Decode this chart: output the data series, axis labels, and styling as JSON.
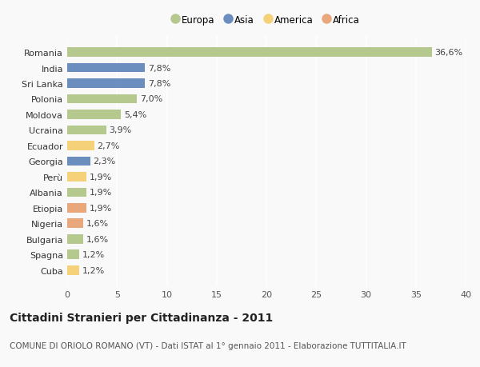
{
  "countries": [
    "Romania",
    "India",
    "Sri Lanka",
    "Polonia",
    "Moldova",
    "Ucraina",
    "Ecuador",
    "Georgia",
    "Perù",
    "Albania",
    "Etiopia",
    "Nigeria",
    "Bulgaria",
    "Spagna",
    "Cuba"
  ],
  "values": [
    36.6,
    7.8,
    7.8,
    7.0,
    5.4,
    3.9,
    2.7,
    2.3,
    1.9,
    1.9,
    1.9,
    1.6,
    1.6,
    1.2,
    1.2
  ],
  "colors": [
    "#b5c98e",
    "#6b8ebf",
    "#6b8ebf",
    "#b5c98e",
    "#b5c98e",
    "#b5c98e",
    "#f5d27a",
    "#6b8ebf",
    "#f5d27a",
    "#b5c98e",
    "#e8a87c",
    "#e8a87c",
    "#b5c98e",
    "#b5c98e",
    "#f5d27a"
  ],
  "labels": [
    "36,6%",
    "7,8%",
    "7,8%",
    "7,0%",
    "5,4%",
    "3,9%",
    "2,7%",
    "2,3%",
    "1,9%",
    "1,9%",
    "1,9%",
    "1,6%",
    "1,6%",
    "1,2%",
    "1,2%"
  ],
  "legend": [
    {
      "label": "Europa",
      "color": "#b5c98e"
    },
    {
      "label": "Asia",
      "color": "#6b8ebf"
    },
    {
      "label": "America",
      "color": "#f5d27a"
    },
    {
      "label": "Africa",
      "color": "#e8a87c"
    }
  ],
  "xlim": [
    0,
    40
  ],
  "xticks": [
    0,
    5,
    10,
    15,
    20,
    25,
    30,
    35,
    40
  ],
  "title": "Cittadini Stranieri per Cittadinanza - 2011",
  "subtitle": "COMUNE DI ORIOLO ROMANO (VT) - Dati ISTAT al 1° gennaio 2011 - Elaborazione TUTTITALIA.IT",
  "bg_color": "#f9f9f9",
  "plot_bg_color": "#f9f9f9",
  "grid_color": "#ffffff",
  "bar_height": 0.6,
  "label_fontsize": 8,
  "tick_fontsize": 8,
  "title_fontsize": 10,
  "subtitle_fontsize": 7.5,
  "legend_fontsize": 8.5
}
